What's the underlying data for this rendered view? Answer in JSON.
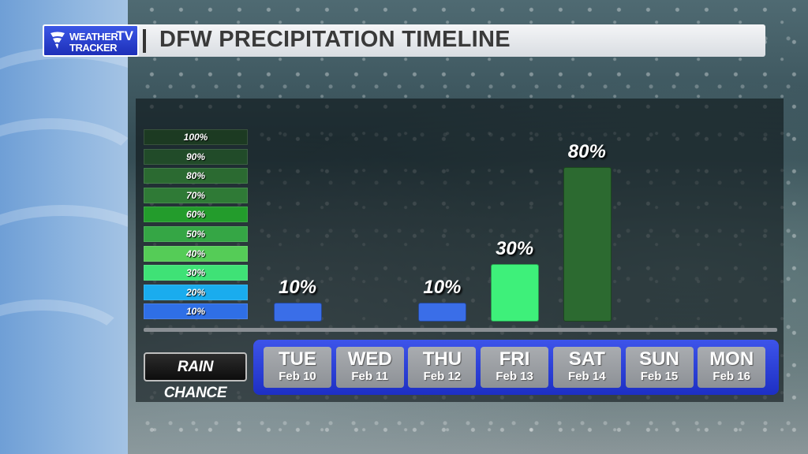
{
  "header": {
    "logo_line1": "WEATHER",
    "logo_line2": "TRACKER",
    "logo_tv": "TV",
    "title": "DFW PRECIPITATION TIMELINE"
  },
  "legend": [
    {
      "label": "100%",
      "color": "#1c3a22"
    },
    {
      "label": "90%",
      "color": "#214b29"
    },
    {
      "label": "80%",
      "color": "#2b6a31"
    },
    {
      "label": "70%",
      "color": "#2f7a36"
    },
    {
      "label": "60%",
      "color": "#239c2c"
    },
    {
      "label": "50%",
      "color": "#35a645"
    },
    {
      "label": "40%",
      "color": "#55cc57"
    },
    {
      "label": "30%",
      "color": "#3fe276"
    },
    {
      "label": "20%",
      "color": "#1aacee"
    },
    {
      "label": "10%",
      "color": "#2f6fe6"
    }
  ],
  "rain_chance_label": "RAIN CHANCE",
  "chart_data": {
    "type": "bar",
    "categories": [
      "TUE",
      "WED",
      "THU",
      "FRI",
      "SAT",
      "SUN",
      "MON"
    ],
    "dates": [
      "Feb 10",
      "Feb 11",
      "Feb 12",
      "Feb 13",
      "Feb 14",
      "Feb 15",
      "Feb 16"
    ],
    "values": [
      10,
      null,
      10,
      30,
      80,
      null,
      null
    ],
    "value_labels": [
      "10%",
      "",
      "10%",
      "30%",
      "80%",
      "",
      ""
    ],
    "bar_colors": [
      "#3a6ee8",
      null,
      "#3a6ee8",
      "#3ef07a",
      "#2c6a30",
      null,
      null
    ],
    "title": "DFW PRECIPITATION TIMELINE",
    "ylim": [
      0,
      100
    ]
  }
}
